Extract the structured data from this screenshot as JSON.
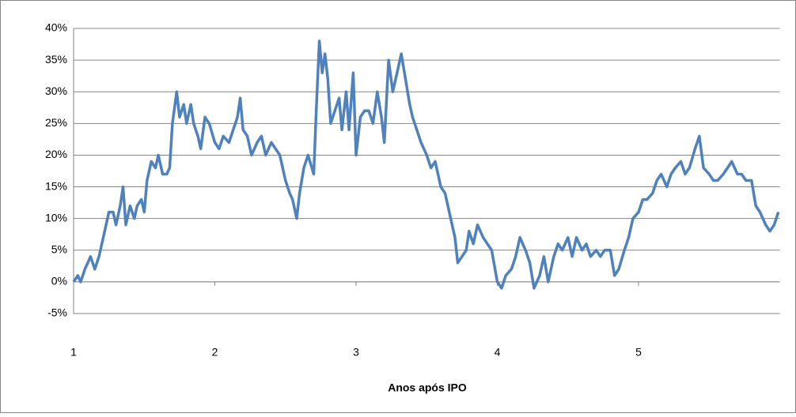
{
  "chart_data": {
    "type": "line",
    "x_label": "Anos após IPO",
    "x": [
      1.0,
      1.03,
      1.05,
      1.08,
      1.1,
      1.12,
      1.15,
      1.18,
      1.2,
      1.22,
      1.25,
      1.28,
      1.3,
      1.33,
      1.35,
      1.37,
      1.4,
      1.43,
      1.45,
      1.48,
      1.5,
      1.52,
      1.55,
      1.58,
      1.6,
      1.63,
      1.66,
      1.68,
      1.7,
      1.73,
      1.75,
      1.78,
      1.8,
      1.83,
      1.85,
      1.88,
      1.9,
      1.93,
      1.96,
      2.0,
      2.03,
      2.06,
      2.1,
      2.13,
      2.16,
      2.18,
      2.2,
      2.23,
      2.26,
      2.3,
      2.33,
      2.36,
      2.4,
      2.43,
      2.46,
      2.5,
      2.53,
      2.55,
      2.58,
      2.6,
      2.63,
      2.66,
      2.7,
      2.72,
      2.74,
      2.76,
      2.78,
      2.8,
      2.82,
      2.85,
      2.88,
      2.9,
      2.93,
      2.95,
      2.98,
      3.0,
      3.03,
      3.06,
      3.09,
      3.12,
      3.15,
      3.18,
      3.2,
      3.23,
      3.26,
      3.29,
      3.32,
      3.35,
      3.38,
      3.4,
      3.43,
      3.46,
      3.5,
      3.53,
      3.56,
      3.6,
      3.63,
      3.66,
      3.7,
      3.72,
      3.75,
      3.78,
      3.8,
      3.83,
      3.86,
      3.9,
      3.93,
      3.96,
      4.0,
      4.03,
      4.06,
      4.1,
      4.13,
      4.16,
      4.2,
      4.23,
      4.26,
      4.3,
      4.33,
      4.36,
      4.4,
      4.43,
      4.46,
      4.5,
      4.53,
      4.56,
      4.6,
      4.63,
      4.66,
      4.7,
      4.73,
      4.76,
      4.8,
      4.83,
      4.86,
      4.9,
      4.93,
      4.96,
      5.0,
      5.03,
      5.06,
      5.1,
      5.13,
      5.16,
      5.2,
      5.23,
      5.26,
      5.3,
      5.33,
      5.36,
      5.4,
      5.43,
      5.46,
      5.5,
      5.53,
      5.56,
      5.6,
      5.63,
      5.66,
      5.7,
      5.73,
      5.76,
      5.8,
      5.83,
      5.86,
      5.9,
      5.93,
      5.96,
      5.99
    ],
    "series": [
      {
        "color": "#4f81bd",
        "values": [
          0,
          1,
          0,
          2,
          3,
          4,
          2,
          4,
          6,
          8,
          11,
          11,
          9,
          12,
          15,
          9,
          12,
          10,
          12,
          13,
          11,
          16,
          19,
          18,
          20,
          17,
          17,
          18,
          25,
          30,
          26,
          28,
          25,
          28,
          25,
          23,
          21,
          26,
          25,
          22,
          21,
          23,
          22,
          24,
          26,
          29,
          24,
          23,
          20,
          22,
          23,
          20,
          22,
          21,
          20,
          16,
          14,
          13,
          10,
          14,
          18,
          20,
          17,
          28,
          38,
          33,
          36,
          32,
          25,
          27,
          29,
          24,
          30,
          24,
          33,
          20,
          26,
          27,
          27,
          25,
          30,
          26,
          22,
          35,
          30,
          33,
          36,
          32,
          28,
          26,
          24,
          22,
          20,
          18,
          19,
          15,
          14,
          11,
          7,
          3,
          4,
          5,
          8,
          6,
          9,
          7,
          6,
          5,
          0,
          -1,
          1,
          2,
          4,
          7,
          5,
          3,
          -1,
          1,
          4,
          0,
          4,
          6,
          5,
          7,
          4,
          7,
          5,
          6,
          4,
          5,
          4,
          5,
          5,
          1,
          2,
          5,
          7,
          10,
          11,
          13,
          13,
          14,
          16,
          17,
          15,
          17,
          18,
          19,
          17,
          18,
          21,
          23,
          18,
          17,
          16,
          16,
          17,
          18,
          19,
          17,
          17,
          16,
          16,
          12,
          11,
          9,
          8,
          9,
          11
        ]
      }
    ],
    "xlim": [
      1,
      6
    ],
    "xticks": [
      1,
      2,
      3,
      4,
      5
    ],
    "ylim": [
      -5,
      40
    ],
    "yticks": [
      {
        "value": -5,
        "label": "-5%"
      },
      {
        "value": 0,
        "label": "0%"
      },
      {
        "value": 5,
        "label": "5%"
      },
      {
        "value": 10,
        "label": "10%"
      },
      {
        "value": 15,
        "label": "15%"
      },
      {
        "value": 20,
        "label": "20%"
      },
      {
        "value": 25,
        "label": "25%"
      },
      {
        "value": 30,
        "label": "30%"
      },
      {
        "value": 35,
        "label": "35%"
      },
      {
        "value": 40,
        "label": "40%"
      }
    ],
    "grid": true
  }
}
